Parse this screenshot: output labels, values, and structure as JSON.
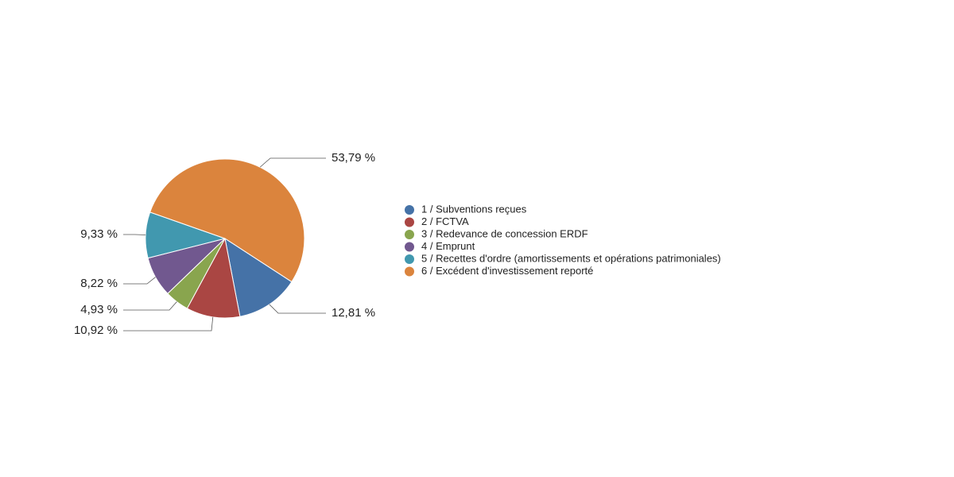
{
  "chart_data": {
    "type": "pie",
    "categories": [
      "1 / Subventions reçues",
      "2 / FCTVA",
      "3 / Redevance de concession ERDF",
      "4 / Emprunt",
      "5 / Recettes d'ordre (amortissements et opérations patrimoniales)",
      "6 / Excédent d'investissement reporté"
    ],
    "values": [
      12.81,
      10.92,
      4.93,
      8.22,
      9.33,
      53.79
    ],
    "value_labels": [
      "12,81 %",
      "10,92 %",
      "4,93 %",
      "8,22 %",
      "9,33 %",
      "53,79 %"
    ],
    "colors": [
      "#4572a7",
      "#aa4643",
      "#89a54e",
      "#71588f",
      "#4198af",
      "#db843d"
    ]
  }
}
